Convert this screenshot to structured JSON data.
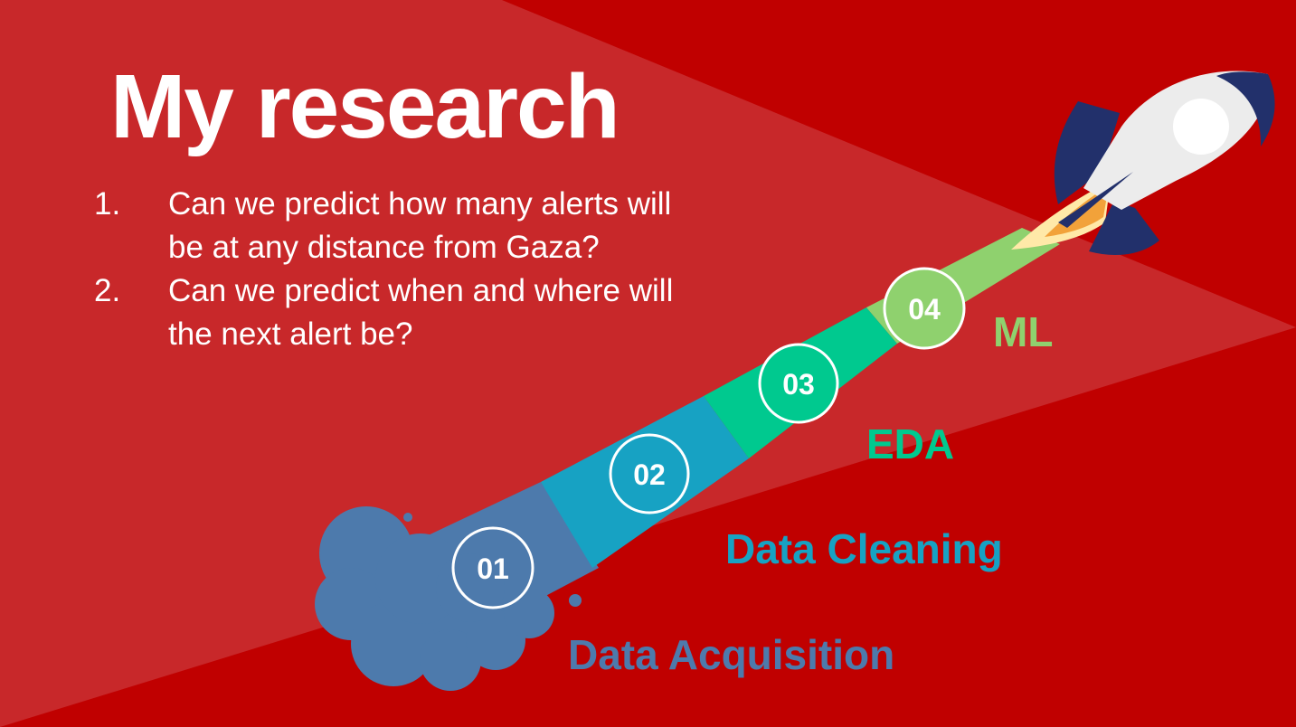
{
  "slide": {
    "title": "My research",
    "questions": [
      {
        "num": "1.",
        "text": "Can we predict how many alerts will be at any distance from Gaza?"
      },
      {
        "num": "2.",
        "text": "Can we predict when and where will the next alert be?"
      }
    ]
  },
  "stages": [
    {
      "step": "01",
      "label": "Data Acquisition",
      "color": "#4d7aac"
    },
    {
      "step": "02",
      "label": "Data Cleaning",
      "color": "#17a2c3"
    },
    {
      "step": "03",
      "label": "EDA",
      "color": "#00c98f"
    },
    {
      "step": "04",
      "label": "ML",
      "color": "#8fd16e"
    }
  ],
  "colors": {
    "background": "#c00000",
    "highlight_triangle": "#c8282a",
    "text": "#ffffff"
  }
}
